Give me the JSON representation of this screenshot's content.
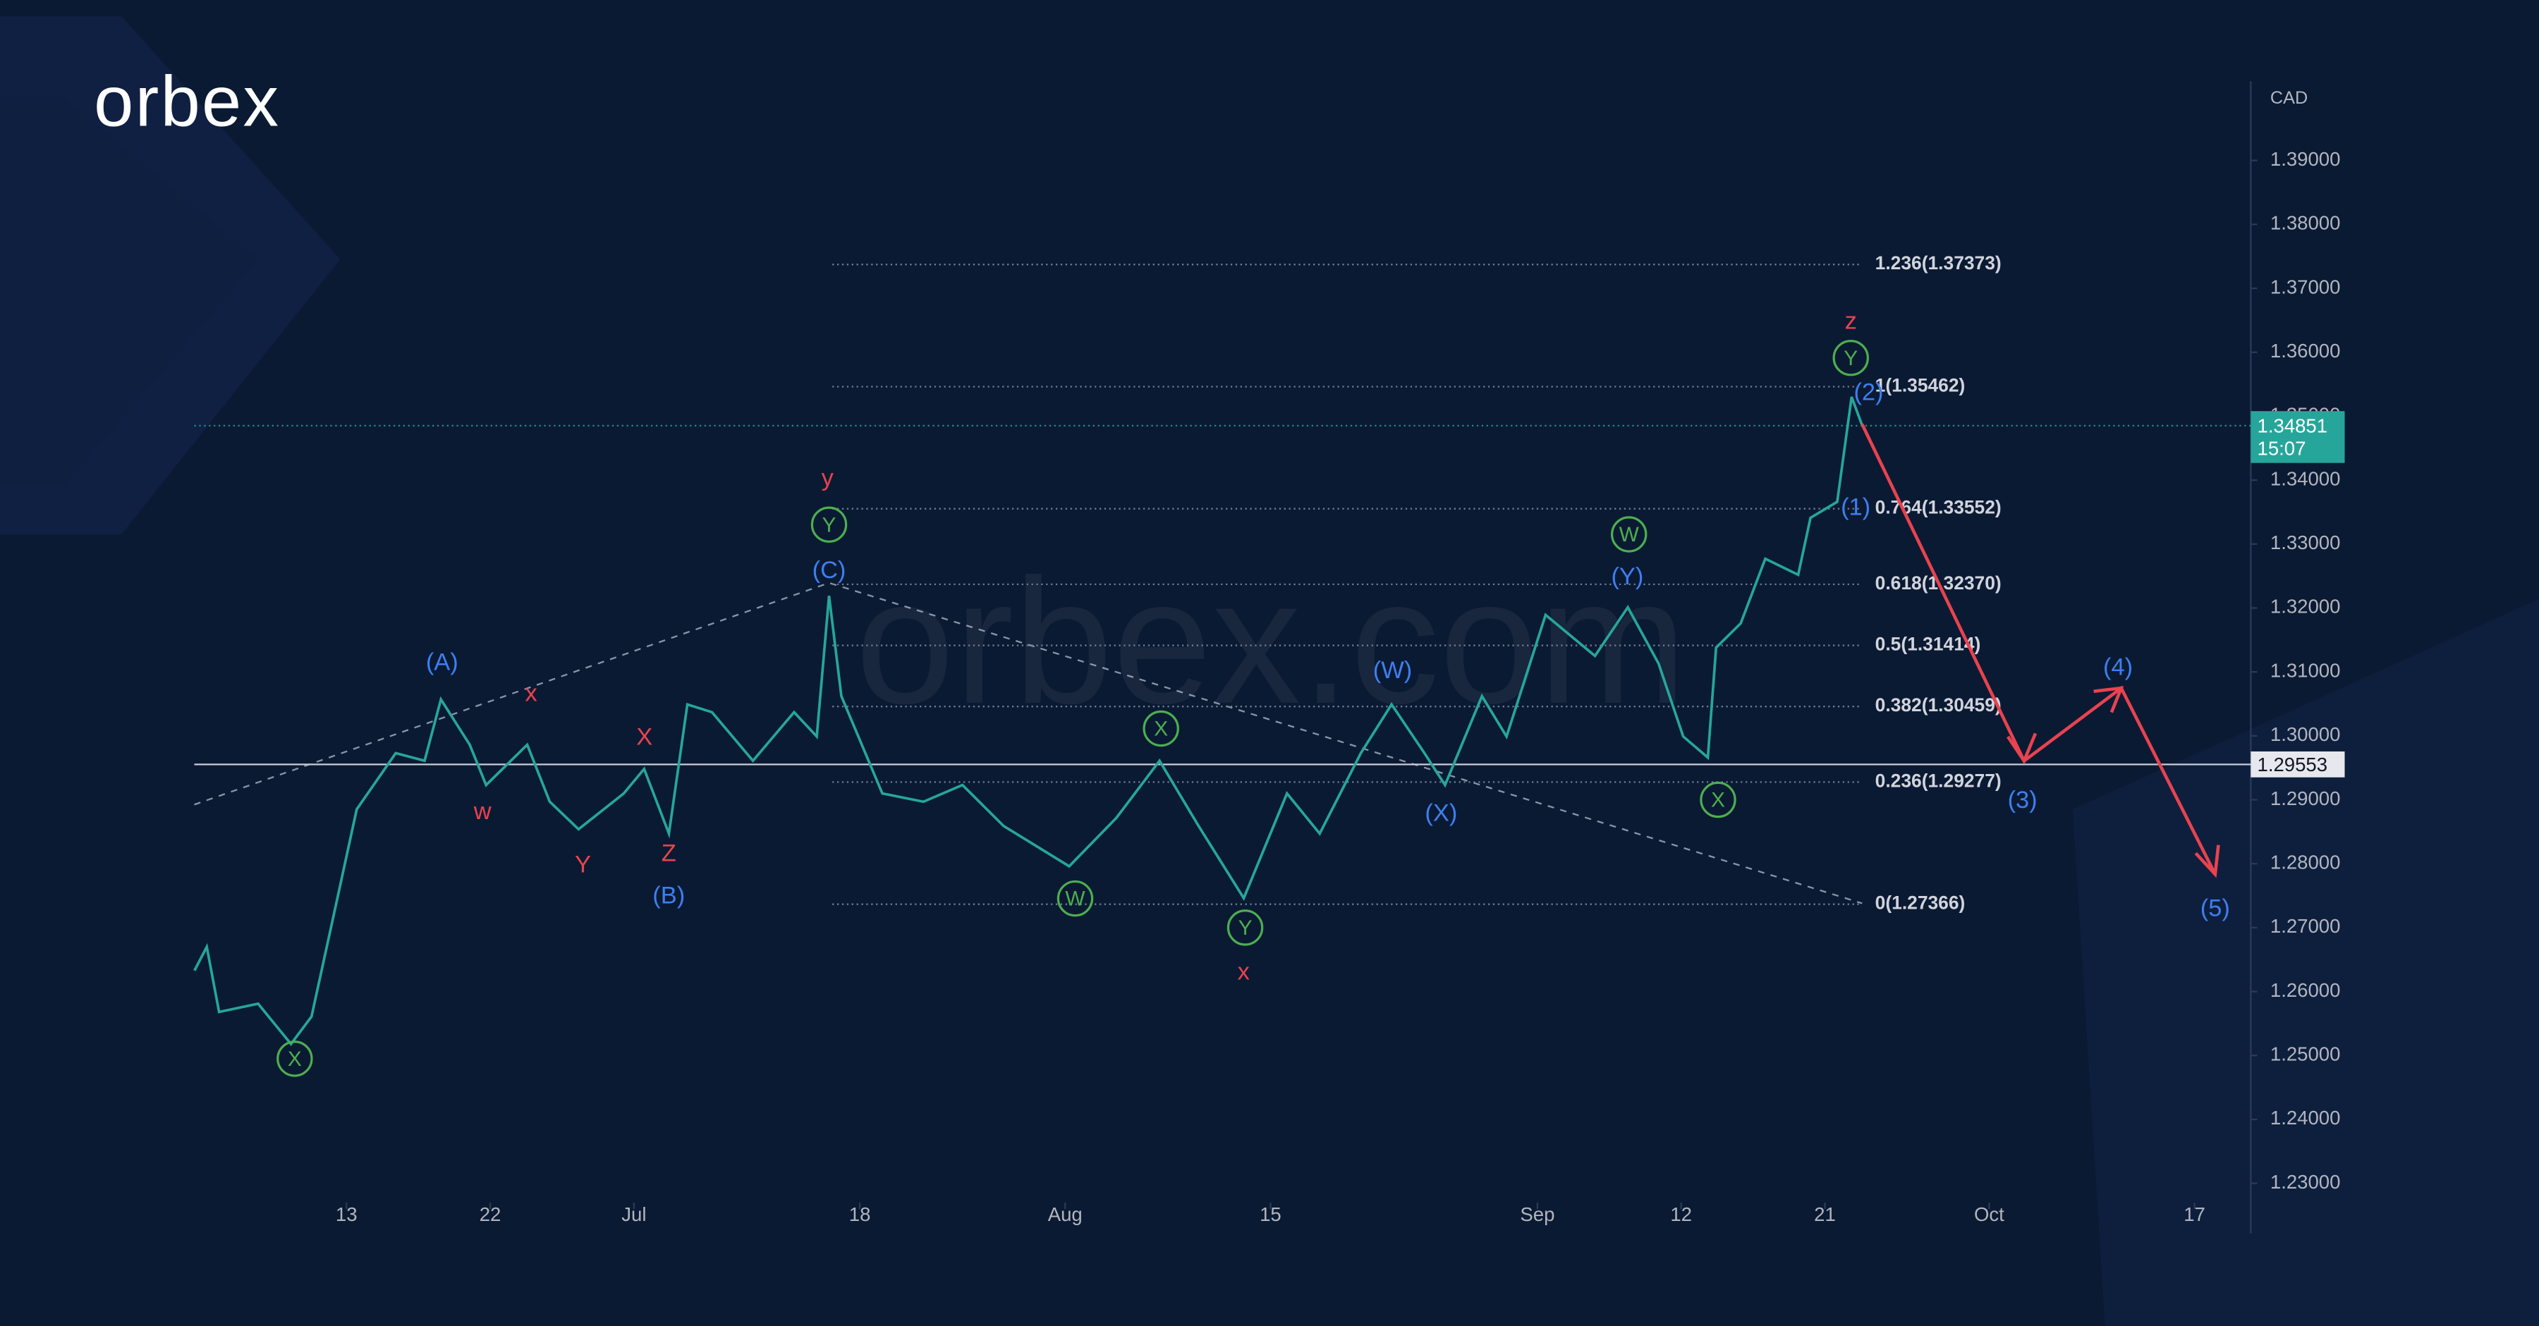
{
  "chart_data": {
    "type": "line",
    "logo": "orbex",
    "watermark": "orbex.com",
    "unit": "CAD",
    "color": "#26a69a",
    "x": [
      -7.4,
      -6.8,
      -6.2,
      -4.3,
      -2.7,
      -1.7,
      -0.7,
      0.5,
      2.4,
      3.8,
      4.6,
      6.0,
      6.8,
      8.8,
      9.9,
      11.3,
      13.5,
      14.5,
      15.7,
      16.6,
      17.8,
      19.8,
      21.8,
      22.9,
      23.5,
      24.1,
      26.1,
      28.1,
      30.0,
      32.0,
      35.2,
      37.5,
      39.6,
      41.5,
      43.7,
      45.8,
      47.4,
      49.4,
      50.9,
      52.5,
      53.5,
      55.3,
      56.5,
      58.4,
      60.8,
      62.4,
      63.9,
      65.1,
      66.3,
      66.7,
      67.9,
      69.1,
      70.7,
      71.3,
      72.6,
      73.3,
      73.8
    ],
    "values": [
      1.2633,
      1.267,
      1.2568,
      1.2581,
      1.2518,
      1.2561,
      1.2708,
      1.2885,
      1.2973,
      1.2961,
      1.3057,
      1.2986,
      1.2923,
      1.2986,
      1.2897,
      1.2854,
      1.291,
      1.2948,
      1.2847,
      1.3049,
      1.3037,
      1.2961,
      1.3037,
      1.2999,
      1.3219,
      1.3062,
      1.291,
      1.2897,
      1.2923,
      1.2859,
      1.2796,
      1.2872,
      1.2961,
      1.2859,
      1.2746,
      1.291,
      1.2847,
      1.2973,
      1.3049,
      1.2973,
      1.2923,
      1.3062,
      1.2999,
      1.3189,
      1.3125,
      1.3201,
      1.3113,
      1.2999,
      1.2966,
      1.3138,
      1.3176,
      1.3277,
      1.3252,
      1.3341,
      1.3366,
      1.353,
      1.3487
    ],
    "xlim": [
      -7.41,
      92.74
    ],
    "xticks": [
      {
        "value": 0,
        "label": "13"
      },
      {
        "value": 7,
        "label": "22"
      },
      {
        "value": 14,
        "label": "Jul"
      },
      {
        "value": 25,
        "label": "18"
      },
      {
        "value": 35,
        "label": "Aug"
      },
      {
        "value": 45,
        "label": "15"
      },
      {
        "value": 58,
        "label": "Sep"
      },
      {
        "value": 65,
        "label": "12"
      },
      {
        "value": 72,
        "label": "21"
      },
      {
        "value": 80,
        "label": "Oct"
      },
      {
        "value": 90,
        "label": "17"
      }
    ],
    "ylim": [
      1.2275,
      1.4035
    ],
    "yticks": [
      {
        "value": 1.23,
        "label": "1.23000"
      },
      {
        "value": 1.24,
        "label": "1.24000"
      },
      {
        "value": 1.25,
        "label": "1.25000"
      },
      {
        "value": 1.26,
        "label": "1.26000"
      },
      {
        "value": 1.27,
        "label": "1.27000"
      },
      {
        "value": 1.28,
        "label": "1.28000"
      },
      {
        "value": 1.29,
        "label": "1.29000"
      },
      {
        "value": 1.3,
        "label": "1.30000"
      },
      {
        "value": 1.31,
        "label": "1.31000"
      },
      {
        "value": 1.32,
        "label": "1.32000"
      },
      {
        "value": 1.33,
        "label": "1.33000"
      },
      {
        "value": 1.34,
        "label": "1.34000"
      },
      {
        "value": 1.35,
        "label": "1.35000"
      },
      {
        "value": 1.36,
        "label": "1.36000"
      },
      {
        "value": 1.37,
        "label": "1.37000"
      },
      {
        "value": 1.38,
        "label": "1.38000"
      },
      {
        "value": 1.39,
        "label": "1.39000"
      }
    ],
    "fib_levels": [
      {
        "value": 1.37373,
        "label": "1.236(1.37373)"
      },
      {
        "value": 1.35462,
        "label": "1(1.35462)"
      },
      {
        "value": 1.33552,
        "label": "0.764(1.33552)"
      },
      {
        "value": 1.3237,
        "label": "0.618(1.32370)"
      },
      {
        "value": 1.31414,
        "label": "0.5(1.31414)"
      },
      {
        "value": 1.30459,
        "label": "0.382(1.30459)"
      },
      {
        "value": 1.29277,
        "label": "0.236(1.29277)"
      },
      {
        "value": 1.27366,
        "label": "0(1.27366)"
      }
    ],
    "price_lines": [
      {
        "value": 1.34851,
        "label": "1.34851",
        "time": "15:07"
      },
      {
        "value": 1.29553,
        "label": "1.29553"
      }
    ],
    "annotations": [
      "(A)",
      "x",
      "w",
      "Y",
      "X",
      "Z",
      "(B)",
      "y",
      "Y",
      "(C)",
      "X",
      "X",
      "W",
      "Y",
      "x",
      "(W)",
      "(X)",
      "W",
      "(Y)",
      "X",
      "z",
      "Y",
      "(2)",
      "(1)",
      "(3)",
      "(4)",
      "(5)"
    ]
  }
}
